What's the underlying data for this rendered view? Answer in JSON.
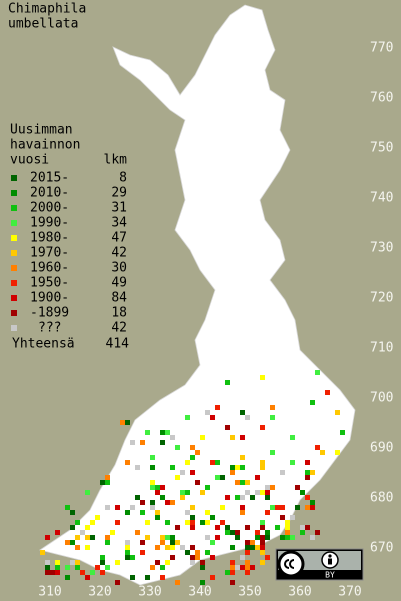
{
  "title": [
    "Chimaphila",
    "umbellata"
  ],
  "legend": {
    "heading": [
      "Uusimman",
      "havainnon",
      "vuosi"
    ],
    "count_heading": "lkm",
    "items": [
      {
        "label": "2015-",
        "count": 8,
        "color": "#006400"
      },
      {
        "label": "2010-",
        "count": 29,
        "color": "#008c00"
      },
      {
        "label": "2000-",
        "count": 31,
        "color": "#10c010"
      },
      {
        "label": "1990-",
        "count": 34,
        "color": "#40ee40"
      },
      {
        "label": "1980-",
        "count": 47,
        "color": "#ffff00"
      },
      {
        "label": "1970-",
        "count": 42,
        "color": "#ffc800"
      },
      {
        "label": "1960-",
        "count": 30,
        "color": "#ff8000"
      },
      {
        "label": "1950-",
        "count": 49,
        "color": "#f02000"
      },
      {
        "label": "1900-",
        "count": 84,
        "color": "#d00000"
      },
      {
        "label": "-1899",
        "count": 18,
        "color": "#a00000"
      },
      {
        "label": "???",
        "count": 42,
        "color": "#c8c8c8"
      }
    ],
    "total_label": "Yhteensä",
    "total": 414
  },
  "grid": {
    "north": [
      770,
      760,
      750,
      740,
      730,
      720,
      710,
      700,
      690,
      680,
      670
    ],
    "east": [
      310,
      320,
      330,
      340,
      350,
      360,
      370
    ]
  },
  "license": "BY"
}
